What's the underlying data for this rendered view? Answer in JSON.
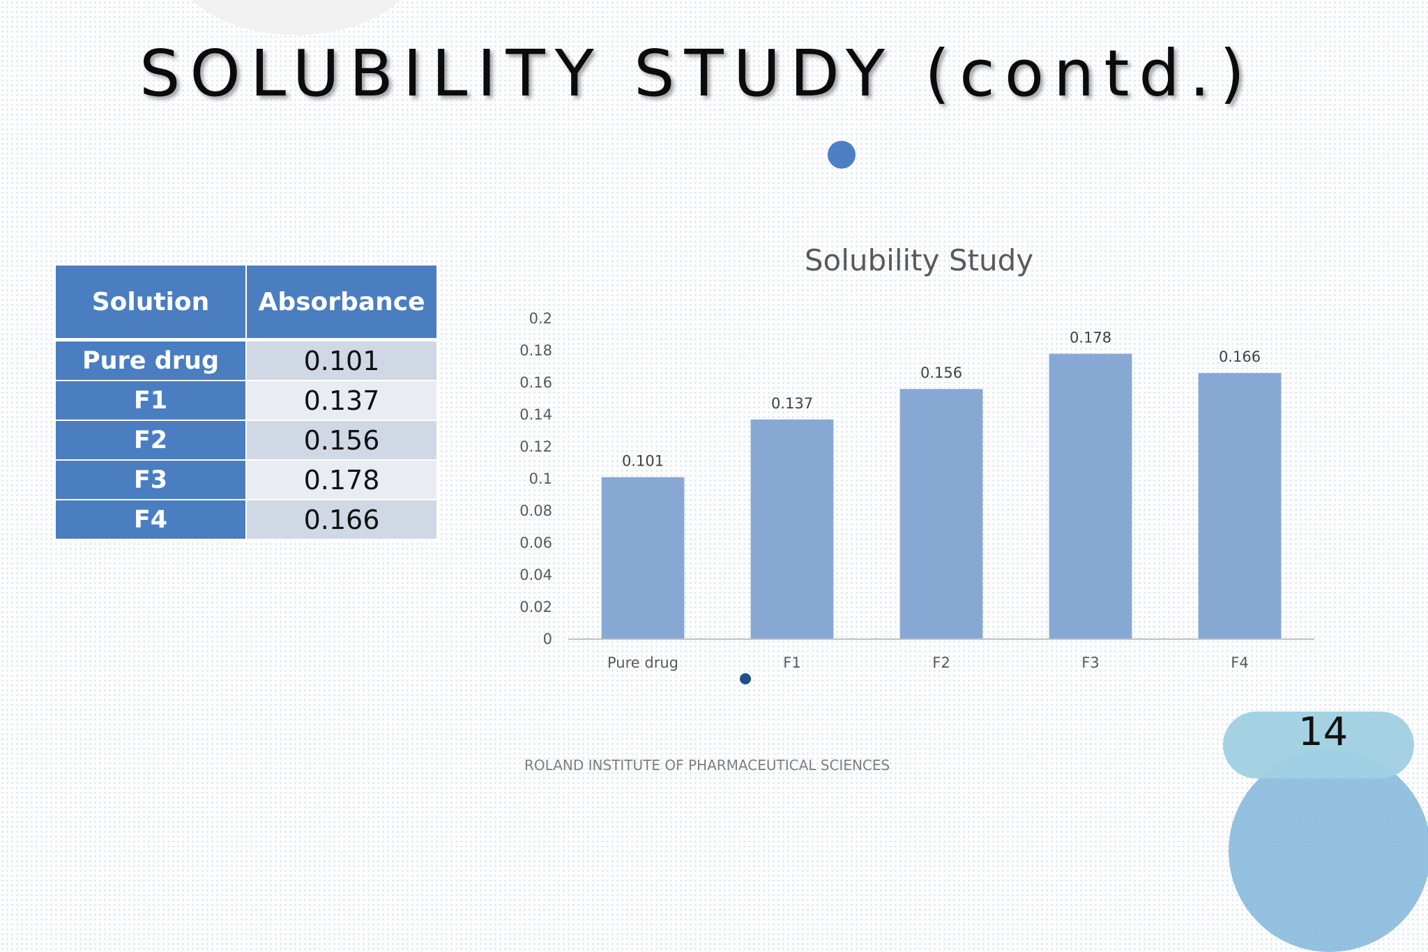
{
  "slide": {
    "title": "SOLUBILITY STUDY (contd.)",
    "footer": "ROLAND INSTITUTE OF PHARMACEUTICAL SCIENCES",
    "page_number": "14"
  },
  "table": {
    "headers": [
      "Solution",
      "Absorbance"
    ],
    "rows": [
      [
        "Pure drug",
        "0.101"
      ],
      [
        "F1",
        "0.137"
      ],
      [
        "F2",
        "0.156"
      ],
      [
        "F3",
        "0.178"
      ],
      [
        "F4",
        "0.166"
      ]
    ]
  },
  "colors": {
    "bar": "#87a8d3",
    "table_header": "#4a7ec0",
    "accent_dot": "#4d7fc4"
  },
  "chart_data": {
    "type": "bar",
    "title": "Solubility Study",
    "categories": [
      "Pure drug",
      "F1",
      "F2",
      "F3",
      "F4"
    ],
    "values": [
      0.101,
      0.137,
      0.156,
      0.178,
      0.166
    ],
    "data_labels": [
      "0.101",
      "0.137",
      "0.156",
      "0.178",
      "0.166"
    ],
    "ylim": [
      0,
      0.2
    ],
    "yticks": [
      0,
      0.02,
      0.04,
      0.06,
      0.08,
      0.1,
      0.12,
      0.14,
      0.16,
      0.18,
      0.2
    ],
    "ytick_labels": [
      "0",
      "0.02",
      "0.04",
      "0.06",
      "0.08",
      "0.1",
      "0.12",
      "0.14",
      "0.16",
      "0.18",
      "0.2"
    ],
    "xlabel": "",
    "ylabel": "",
    "grid": false,
    "legend": "none"
  }
}
